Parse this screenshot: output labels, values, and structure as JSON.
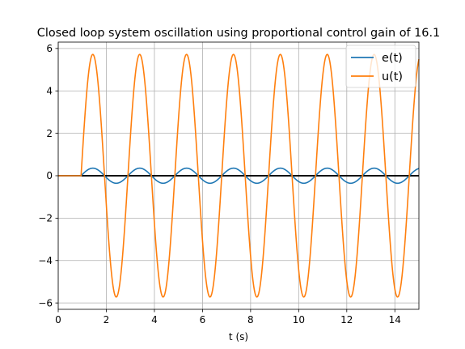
{
  "chart_data": {
    "type": "line",
    "title": "Closed loop system oscillation using proportional control gain of 16.1",
    "xlabel": "t (s)",
    "ylabel": "",
    "xlim": [
      0,
      15
    ],
    "ylim": [
      -6.3,
      6.3
    ],
    "x_ticks": [
      0,
      2,
      4,
      6,
      8,
      10,
      12,
      14
    ],
    "y_ticks": [
      -6,
      -4,
      -2,
      0,
      2,
      4,
      6
    ],
    "x_tick_labels": [
      "0",
      "2",
      "4",
      "6",
      "8",
      "10",
      "12",
      "14"
    ],
    "y_tick_labels": [
      "−6",
      "−4",
      "−2",
      "0",
      "2",
      "4",
      "6"
    ],
    "grid": true,
    "legend_position": "top-right",
    "reference_line": {
      "y": 0,
      "color": "#000000"
    },
    "series": [
      {
        "name": "e(t)",
        "color": "#1f77b4",
        "onset": 0.95,
        "period": 1.95,
        "amplitude": 0.355,
        "x": [
          0,
          0.95,
          1.44,
          1.93,
          2.41,
          2.9,
          3.39,
          3.88,
          4.36,
          4.85,
          5.34,
          5.83,
          6.31,
          6.8,
          7.29,
          7.78,
          8.26,
          8.75,
          9.24,
          9.73,
          10.21,
          10.7,
          11.19,
          11.68,
          12.16,
          12.65,
          13.14,
          13.63,
          14.11,
          14.6,
          15.0
        ],
        "y": [
          0,
          0,
          0.355,
          0,
          -0.355,
          0,
          0.355,
          0,
          -0.355,
          0,
          0.355,
          0,
          -0.355,
          0,
          0.355,
          0,
          -0.355,
          0,
          0.355,
          0,
          -0.355,
          0,
          0.355,
          0,
          -0.355,
          0,
          0.355,
          0,
          -0.355,
          0,
          0.3
        ]
      },
      {
        "name": "u(t)",
        "color": "#ff7f0e",
        "onset": 0.95,
        "period": 1.95,
        "amplitude": 5.72,
        "x": [
          0,
          0.95,
          1.44,
          1.93,
          2.41,
          2.9,
          3.39,
          3.88,
          4.36,
          4.85,
          5.34,
          5.83,
          6.31,
          6.8,
          7.29,
          7.78,
          8.26,
          8.75,
          9.24,
          9.73,
          10.21,
          10.7,
          11.19,
          11.68,
          12.16,
          12.65,
          13.14,
          13.63,
          14.11,
          14.6,
          15.0
        ],
        "y": [
          0,
          0,
          5.72,
          0,
          -5.72,
          0,
          5.72,
          0,
          -5.72,
          0,
          5.72,
          0,
          -5.72,
          0,
          5.72,
          0,
          -5.72,
          0,
          5.72,
          0,
          -5.72,
          0,
          5.72,
          0,
          -5.72,
          0,
          5.72,
          0,
          -5.72,
          0,
          4.9
        ]
      }
    ]
  }
}
